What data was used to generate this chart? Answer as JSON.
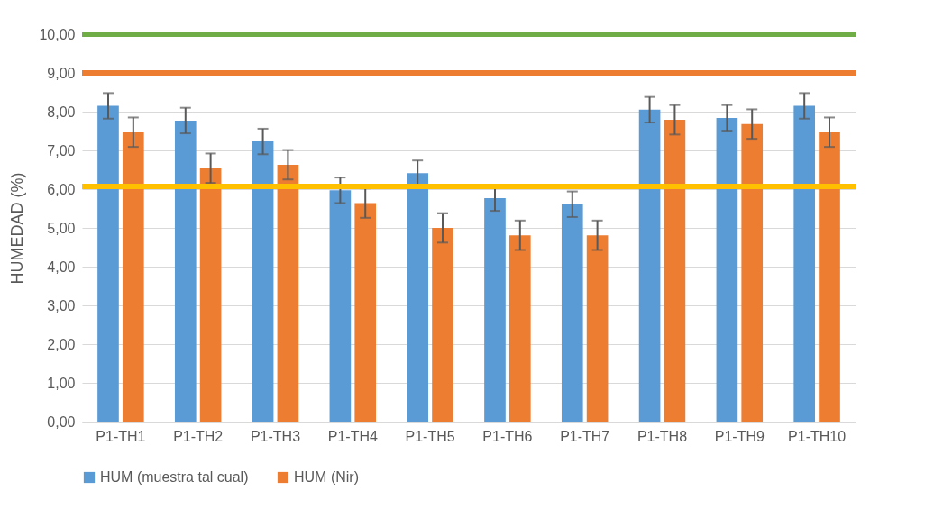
{
  "chart_data": {
    "type": "bar",
    "ylabel": "HUMEDAD (%)",
    "categories": [
      "P1-TH1",
      "P1-TH2",
      "P1-TH3",
      "P1-TH4",
      "P1-TH5",
      "P1-TH6",
      "P1-TH7",
      "P1-TH8",
      "P1-TH9",
      "P1-TH10"
    ],
    "series": [
      {
        "name": "HUM (muestra tal cual)",
        "color": "#5b9bd5",
        "values": [
          8.15,
          7.77,
          7.23,
          5.97,
          6.41,
          5.77,
          5.61,
          8.05,
          7.84,
          8.15
        ],
        "errors": [
          0.33,
          0.33,
          0.33,
          0.33,
          0.33,
          0.33,
          0.33,
          0.33,
          0.33,
          0.33
        ]
      },
      {
        "name": "HUM (Nir)",
        "color": "#ed7d31",
        "values": [
          7.47,
          6.54,
          6.63,
          5.64,
          5.0,
          4.81,
          4.81,
          7.79,
          7.68,
          7.47
        ],
        "errors": [
          0.38,
          0.38,
          0.38,
          0.38,
          0.38,
          0.38,
          0.38,
          0.38,
          0.38,
          0.38
        ]
      }
    ],
    "ylim": [
      0,
      10
    ],
    "yticks": [
      {
        "value": 0,
        "label": "0,00"
      },
      {
        "value": 1,
        "label": "1,00"
      },
      {
        "value": 2,
        "label": "2,00"
      },
      {
        "value": 3,
        "label": "3,00"
      },
      {
        "value": 4,
        "label": "4,00"
      },
      {
        "value": 5,
        "label": "5,00"
      },
      {
        "value": 6,
        "label": "6,00"
      },
      {
        "value": 7,
        "label": "7,00"
      },
      {
        "value": 8,
        "label": "8,00"
      },
      {
        "value": 9,
        "label": "9,00"
      },
      {
        "value": 10,
        "label": "10,00"
      }
    ],
    "ref_lines": [
      {
        "axis": "y",
        "value": 10,
        "color": "#70ad47"
      },
      {
        "axis": "y",
        "value": 9,
        "color": "#ed7d31"
      },
      {
        "axis": "y",
        "value": 6.07,
        "color": "#ffc000"
      }
    ],
    "grid": "y",
    "legend": "bottom"
  }
}
